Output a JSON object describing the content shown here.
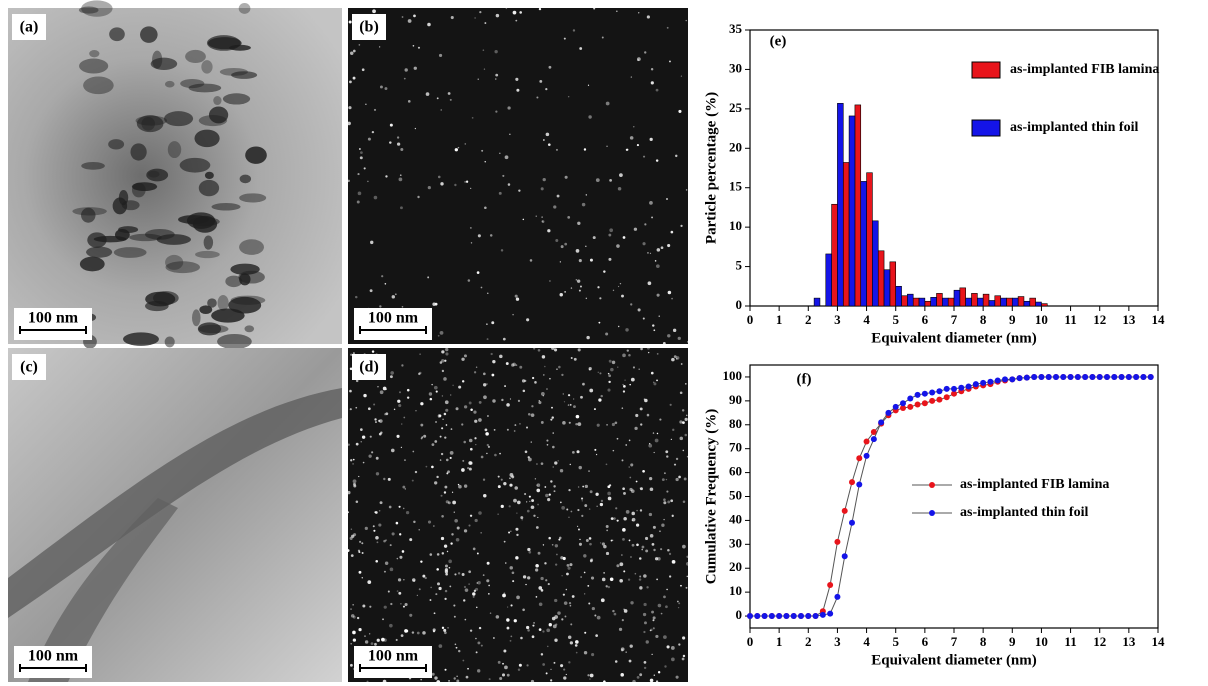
{
  "images": [
    {
      "label": "(a)",
      "scale_bar": "100 nm"
    },
    {
      "label": "(b)",
      "scale_bar": "100 nm"
    },
    {
      "label": "(c)",
      "scale_bar": "100 nm"
    },
    {
      "label": "(d)",
      "scale_bar": "100 nm"
    }
  ],
  "chart_data": [
    {
      "type": "bar",
      "panel_label": "(e)",
      "x_label": "Equivalent diameter (nm)",
      "y_label": "Particle percentage (%)",
      "x": [
        2.4,
        2.8,
        3.2,
        3.6,
        4.0,
        4.4,
        4.8,
        5.2,
        5.6,
        6.0,
        6.4,
        6.8,
        7.2,
        7.6,
        8.0,
        8.4,
        8.8,
        9.2,
        9.6,
        10.0,
        10.4,
        10.8
      ],
      "series": [
        {
          "name": "as-implanted FIB lamina",
          "color": "#e8141b",
          "values": [
            0,
            12.9,
            18.2,
            25.5,
            16.9,
            7.0,
            5.6,
            1.3,
            1.0,
            0.6,
            1.6,
            1.0,
            2.3,
            1.6,
            1.5,
            1.3,
            1.0,
            1.2,
            1.0,
            0.3,
            0,
            0
          ]
        },
        {
          "name": "as-implanted thin foil",
          "color": "#1414e8",
          "values": [
            1.0,
            6.6,
            25.7,
            24.1,
            15.8,
            10.8,
            4.6,
            2.5,
            1.5,
            1.0,
            1.1,
            1.0,
            2.0,
            1.0,
            1.0,
            0.7,
            1.0,
            1.0,
            0.6,
            0.5,
            0,
            0
          ]
        }
      ],
      "xlim": [
        0,
        14
      ],
      "xticks": [
        0,
        1,
        2,
        3,
        4,
        5,
        6,
        7,
        8,
        9,
        10,
        11,
        12,
        13,
        14
      ],
      "ylim": [
        0,
        35
      ],
      "yticks": [
        0,
        5,
        10,
        15,
        20,
        25,
        30,
        35
      ],
      "legend": "upper right"
    },
    {
      "type": "line",
      "panel_label": "(f)",
      "x_label": "Equivalent diameter (nm)",
      "y_label": "Cumulative Frequency (%)",
      "x": [
        0,
        0.25,
        0.5,
        0.75,
        1,
        1.25,
        1.5,
        1.75,
        2,
        2.25,
        2.5,
        2.75,
        3,
        3.25,
        3.5,
        3.75,
        4,
        4.25,
        4.5,
        4.75,
        5,
        5.25,
        5.5,
        5.75,
        6,
        6.25,
        6.5,
        6.75,
        7,
        7.25,
        7.5,
        7.75,
        8,
        8.25,
        8.5,
        8.75,
        9,
        9.25,
        9.5,
        9.75,
        10,
        10.25,
        10.5,
        10.75,
        11,
        11.25,
        11.5,
        11.75,
        12,
        12.25,
        12.5,
        12.75,
        13,
        13.25,
        13.5,
        13.75
      ],
      "series": [
        {
          "name": "as-implanted FIB lamina",
          "color": "#e8141b",
          "values": [
            0,
            0,
            0,
            0,
            0,
            0,
            0,
            0,
            0,
            0,
            2,
            13,
            31,
            44,
            56,
            66,
            73,
            77,
            80.5,
            84,
            86,
            87,
            87.5,
            88.5,
            89,
            90,
            90.5,
            91.5,
            93,
            94,
            95,
            96,
            96.5,
            97,
            98,
            98.5,
            99,
            99.5,
            99.7,
            100,
            100,
            100,
            100,
            100,
            100,
            100,
            100,
            100,
            100,
            100,
            100,
            100,
            100,
            100,
            100,
            100
          ]
        },
        {
          "name": "as-implanted thin foil",
          "color": "#1414e8",
          "values": [
            0,
            0,
            0,
            0,
            0,
            0,
            0,
            0,
            0,
            0,
            0.5,
            1,
            8,
            25,
            39,
            55,
            67,
            74,
            81,
            85,
            87.5,
            89,
            91,
            92.5,
            93,
            93.5,
            94,
            95,
            95,
            95.5,
            96,
            97,
            97.5,
            98,
            98.5,
            99,
            99,
            99.5,
            99.7,
            100,
            100,
            100,
            100,
            100,
            100,
            100,
            100,
            100,
            100,
            100,
            100,
            100,
            100,
            100,
            100,
            100
          ]
        }
      ],
      "xlim": [
        0,
        14
      ],
      "xticks": [
        0,
        1,
        2,
        3,
        4,
        5,
        6,
        7,
        8,
        9,
        10,
        11,
        12,
        13,
        14
      ],
      "ylim": [
        -5,
        105
      ],
      "yticks": [
        0,
        10,
        20,
        30,
        40,
        50,
        60,
        70,
        80,
        90,
        100
      ],
      "legend": "center right"
    }
  ]
}
